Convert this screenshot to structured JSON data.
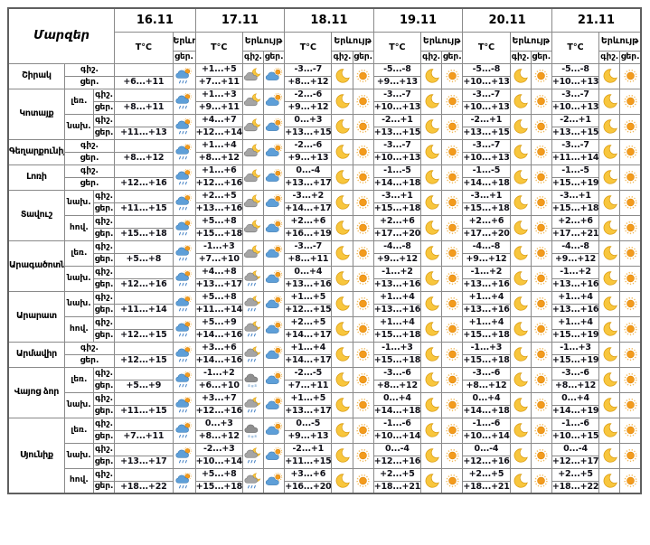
{
  "header": {
    "region_col": "Մարզեր",
    "dates": [
      "16.11",
      "17.11",
      "18.11",
      "19.11",
      "20.11",
      "21.11"
    ],
    "temp_label": "T°C",
    "phen_label": "Երևույթ",
    "night_label": "գիշ.",
    "day_label": "ցեր."
  },
  "colors": {
    "sun": "#F39B1D",
    "sun_rays": "#F2BC5E",
    "moon": "#F8C63D",
    "cloud_day": "#5E9FD8",
    "cloud_night": "#A5A5A5",
    "cloud_snow": "#8F8F8F",
    "rain": "#4D87C7",
    "snow": "#9FBEDC",
    "border": "#8a8a8a"
  },
  "icon_legend": {
    "sun": "clear day sun",
    "moon": "clear night crescent moon",
    "sun-cloud": "partly cloudy day",
    "moon-cloud": "partly cloudy night",
    "sun-cloud-rain": "day rain showers",
    "moon-cloud-rain": "night rain showers",
    "cloud-snow": "night snow shower"
  },
  "regions": [
    {
      "name": "Շիրակ",
      "zones": [
        {
          "label": "",
          "night_t": [
            "",
            "+1...+5",
            "-3...-7",
            "-5...-8",
            "-5...-8",
            "-5...-8"
          ],
          "day_t": [
            "+6...+11",
            "+7...+11",
            "+8...+12",
            "+9...+13",
            "+10...+13",
            "+10...+13"
          ],
          "night_icons": [
            "",
            "moon-cloud",
            "moon",
            "moon",
            "moon",
            "moon"
          ],
          "day_icons": [
            "sun-cloud-rain",
            "sun-cloud",
            "sun",
            "sun",
            "sun",
            "sun"
          ]
        }
      ]
    },
    {
      "name": "Կոտայք",
      "zones": [
        {
          "label": "լեռ.",
          "night_t": [
            "",
            "+1...+3",
            "-2...-6",
            "-3...-7",
            "-3...-7",
            "-3...-7"
          ],
          "day_t": [
            "+8...+11",
            "+9...+11",
            "+9...+12",
            "+10...+13",
            "+10...+13",
            "+10...+13"
          ],
          "night_icons": [
            "",
            "moon-cloud",
            "moon",
            "moon",
            "moon",
            "moon"
          ],
          "day_icons": [
            "sun-cloud-rain",
            "sun-cloud",
            "sun",
            "sun",
            "sun",
            "sun"
          ]
        },
        {
          "label": "նախ.",
          "night_t": [
            "",
            "+4...+7",
            "0...+3",
            "-2...+1",
            "-2...+1",
            "-2...+1"
          ],
          "day_t": [
            "+11...+13",
            "+12...+14",
            "+13...+15",
            "+13...+15",
            "+13...+15",
            "+13...+15"
          ],
          "night_icons": [
            "",
            "moon-cloud",
            "moon",
            "moon",
            "moon",
            "moon"
          ],
          "day_icons": [
            "sun-cloud-rain",
            "sun-cloud",
            "sun",
            "sun",
            "sun",
            "sun"
          ]
        }
      ]
    },
    {
      "name": "Գեղարքունիք",
      "zones": [
        {
          "label": "",
          "night_t": [
            "",
            "+1...+4",
            "-2...-6",
            "-3...-7",
            "-3...-7",
            "-3...-7"
          ],
          "day_t": [
            "+8...+12",
            "+8...+12",
            "+9...+13",
            "+10...+13",
            "+10...+13",
            "+11...+14"
          ],
          "night_icons": [
            "",
            "moon-cloud",
            "moon",
            "moon",
            "moon",
            "moon"
          ],
          "day_icons": [
            "sun-cloud-rain",
            "sun-cloud",
            "sun",
            "sun",
            "sun",
            "sun"
          ]
        }
      ]
    },
    {
      "name": "Լոռի",
      "zones": [
        {
          "label": "",
          "night_t": [
            "",
            "+1...+6",
            "0...-4",
            "-1...-5",
            "-1...-5",
            "-1...-5"
          ],
          "day_t": [
            "+12...+16",
            "+12...+16",
            "+13...+17",
            "+14...+18",
            "+14...+18",
            "+15...+19"
          ],
          "night_icons": [
            "",
            "moon-cloud",
            "moon",
            "moon",
            "moon",
            "moon"
          ],
          "day_icons": [
            "sun-cloud-rain",
            "sun-cloud",
            "sun",
            "sun",
            "sun",
            "sun"
          ]
        }
      ]
    },
    {
      "name": "Տավուշ",
      "zones": [
        {
          "label": "նախ.",
          "night_t": [
            "",
            "+2...+5",
            "-3...+2",
            "-3...+1",
            "-3...+1",
            "-3...+1"
          ],
          "day_t": [
            "+11...+15",
            "+13...+16",
            "+14...+17",
            "+15...+18",
            "+15...+18",
            "+15...+18"
          ],
          "night_icons": [
            "",
            "moon-cloud",
            "moon",
            "moon",
            "moon",
            "moon"
          ],
          "day_icons": [
            "sun-cloud-rain",
            "sun-cloud",
            "sun",
            "sun",
            "sun",
            "sun"
          ]
        },
        {
          "label": "հով.",
          "night_t": [
            "",
            "+5...+8",
            "+2...+6",
            "+2...+6",
            "+2...+6",
            "+2...+6"
          ],
          "day_t": [
            "+15...+18",
            "+15...+18",
            "+16...+19",
            "+17...+20",
            "+17...+20",
            "+17...+21"
          ],
          "night_icons": [
            "",
            "moon-cloud",
            "moon",
            "moon",
            "moon",
            "moon"
          ],
          "day_icons": [
            "sun-cloud-rain",
            "sun-cloud",
            "sun",
            "sun",
            "sun",
            "sun"
          ]
        }
      ]
    },
    {
      "name": "Արագածոտն",
      "zones": [
        {
          "label": "լեռ.",
          "night_t": [
            "",
            "-1...+3",
            "-3...-7",
            "-4...-8",
            "-4...-8",
            "-4...-8"
          ],
          "day_t": [
            "+5...+8",
            "+7...+10",
            "+8...+11",
            "+9...+12",
            "+9...+12",
            "+9...+12"
          ],
          "night_icons": [
            "",
            "moon-cloud",
            "moon",
            "moon",
            "moon",
            "moon"
          ],
          "day_icons": [
            "sun-cloud-rain",
            "sun-cloud",
            "sun",
            "sun",
            "sun",
            "sun"
          ]
        },
        {
          "label": "նախ.",
          "night_t": [
            "",
            "+4...+8",
            "0...+4",
            "-1...+2",
            "-1...+2",
            "-1...+2"
          ],
          "day_t": [
            "+12...+16",
            "+13...+17",
            "+13...+16",
            "+13...+16",
            "+13...+16",
            "+13...+16"
          ],
          "night_icons": [
            "",
            "moon-cloud-rain",
            "moon",
            "moon",
            "moon",
            "moon"
          ],
          "day_icons": [
            "sun-cloud-rain",
            "sun-cloud",
            "sun",
            "sun",
            "sun",
            "sun"
          ]
        }
      ]
    },
    {
      "name": "Արարատ",
      "zones": [
        {
          "label": "նախ.",
          "night_t": [
            "",
            "+5...+8",
            "+1...+5",
            "+1...+4",
            "+1...+4",
            "+1...+4"
          ],
          "day_t": [
            "+11...+14",
            "+11...+14",
            "+12...+15",
            "+13...+16",
            "+13...+16",
            "+13...+16"
          ],
          "night_icons": [
            "",
            "moon-cloud-rain",
            "moon",
            "moon",
            "moon",
            "moon"
          ],
          "day_icons": [
            "sun-cloud-rain",
            "sun-cloud",
            "sun",
            "sun",
            "sun",
            "sun"
          ]
        },
        {
          "label": "հով.",
          "night_t": [
            "",
            "+5...+9",
            "+2...+5",
            "+1...+4",
            "+1...+4",
            "+1...+4"
          ],
          "day_t": [
            "+12...+15",
            "+14...+16",
            "+14...+17",
            "+15...+18",
            "+15...+18",
            "+15...+19"
          ],
          "night_icons": [
            "",
            "moon-cloud-rain",
            "moon",
            "moon",
            "moon",
            "moon"
          ],
          "day_icons": [
            "sun-cloud-rain",
            "sun-cloud",
            "sun",
            "sun",
            "sun",
            "sun"
          ]
        }
      ]
    },
    {
      "name": "Արմավիր",
      "zones": [
        {
          "label": "",
          "night_t": [
            "",
            "+3...+6",
            "+1...+4",
            "-1...+3",
            "-1...+3",
            "-1...+3"
          ],
          "day_t": [
            "+12...+15",
            "+14...+16",
            "+14...+17",
            "+15...+18",
            "+15...+18",
            "+15...+19"
          ],
          "night_icons": [
            "",
            "moon-cloud-rain",
            "moon",
            "moon",
            "moon",
            "moon"
          ],
          "day_icons": [
            "sun-cloud-rain",
            "sun-cloud",
            "sun",
            "sun",
            "sun",
            "sun"
          ]
        }
      ]
    },
    {
      "name": "Վայոց ձոր",
      "zones": [
        {
          "label": "լեռ.",
          "night_t": [
            "",
            "-1...+2",
            "-2...-5",
            "-3...-6",
            "-3...-6",
            "-3...-6"
          ],
          "day_t": [
            "+5...+9",
            "+6...+10",
            "+7...+11",
            "+8...+12",
            "+8...+12",
            "+8...+12"
          ],
          "night_icons": [
            "",
            "cloud-snow",
            "moon",
            "moon",
            "moon",
            "moon"
          ],
          "day_icons": [
            "sun-cloud-rain",
            "sun-cloud",
            "sun",
            "sun",
            "sun",
            "sun"
          ]
        },
        {
          "label": "նախ.",
          "night_t": [
            "",
            "+3...+7",
            "+1...+5",
            "0...+4",
            "0...+4",
            "0...+4"
          ],
          "day_t": [
            "+11...+15",
            "+12...+16",
            "+13...+17",
            "+14...+18",
            "+14...+18",
            "+14...+19"
          ],
          "night_icons": [
            "",
            "moon-cloud-rain",
            "moon",
            "moon",
            "moon",
            "moon"
          ],
          "day_icons": [
            "sun-cloud-rain",
            "sun-cloud",
            "sun",
            "sun",
            "sun",
            "sun"
          ]
        }
      ]
    },
    {
      "name": "Սյունիք",
      "zones": [
        {
          "label": "լեռ.",
          "night_t": [
            "",
            "0...+3",
            "0...-5",
            "-1...-6",
            "-1...-6",
            "-1...-6"
          ],
          "day_t": [
            "+7...+11",
            "+8...+12",
            "+9...+13",
            "+10...+14",
            "+10...+14",
            "+10...+15"
          ],
          "night_icons": [
            "",
            "cloud-snow",
            "moon",
            "moon",
            "moon",
            "moon"
          ],
          "day_icons": [
            "sun-cloud-rain",
            "sun-cloud",
            "sun",
            "sun",
            "sun",
            "sun"
          ]
        },
        {
          "label": "նախ.",
          "night_t": [
            "",
            "-2...+3",
            "-2...+1",
            "0...-4",
            "0...-4",
            "0...-4"
          ],
          "day_t": [
            "+13...+17",
            "+10...+14",
            "+11...+15",
            "+12...+16",
            "+12...+16",
            "+12...+17"
          ],
          "night_icons": [
            "",
            "moon-cloud-rain",
            "moon",
            "moon",
            "moon",
            "moon"
          ],
          "day_icons": [
            "sun-cloud-rain",
            "sun-cloud",
            "sun",
            "sun",
            "sun",
            "sun"
          ]
        },
        {
          "label": "հով.",
          "night_t": [
            "",
            "+5...+8",
            "+3...+6",
            "+2...+5",
            "+2...+5",
            "+2...+5"
          ],
          "day_t": [
            "+18...+22",
            "+15...+18",
            "+16...+20",
            "+18...+21",
            "+18...+21",
            "+18...+22"
          ],
          "night_icons": [
            "",
            "moon-cloud-rain",
            "moon",
            "moon",
            "moon",
            "moon"
          ],
          "day_icons": [
            "sun-cloud-rain",
            "sun-cloud",
            "sun",
            "sun",
            "sun",
            "sun"
          ]
        }
      ]
    }
  ]
}
